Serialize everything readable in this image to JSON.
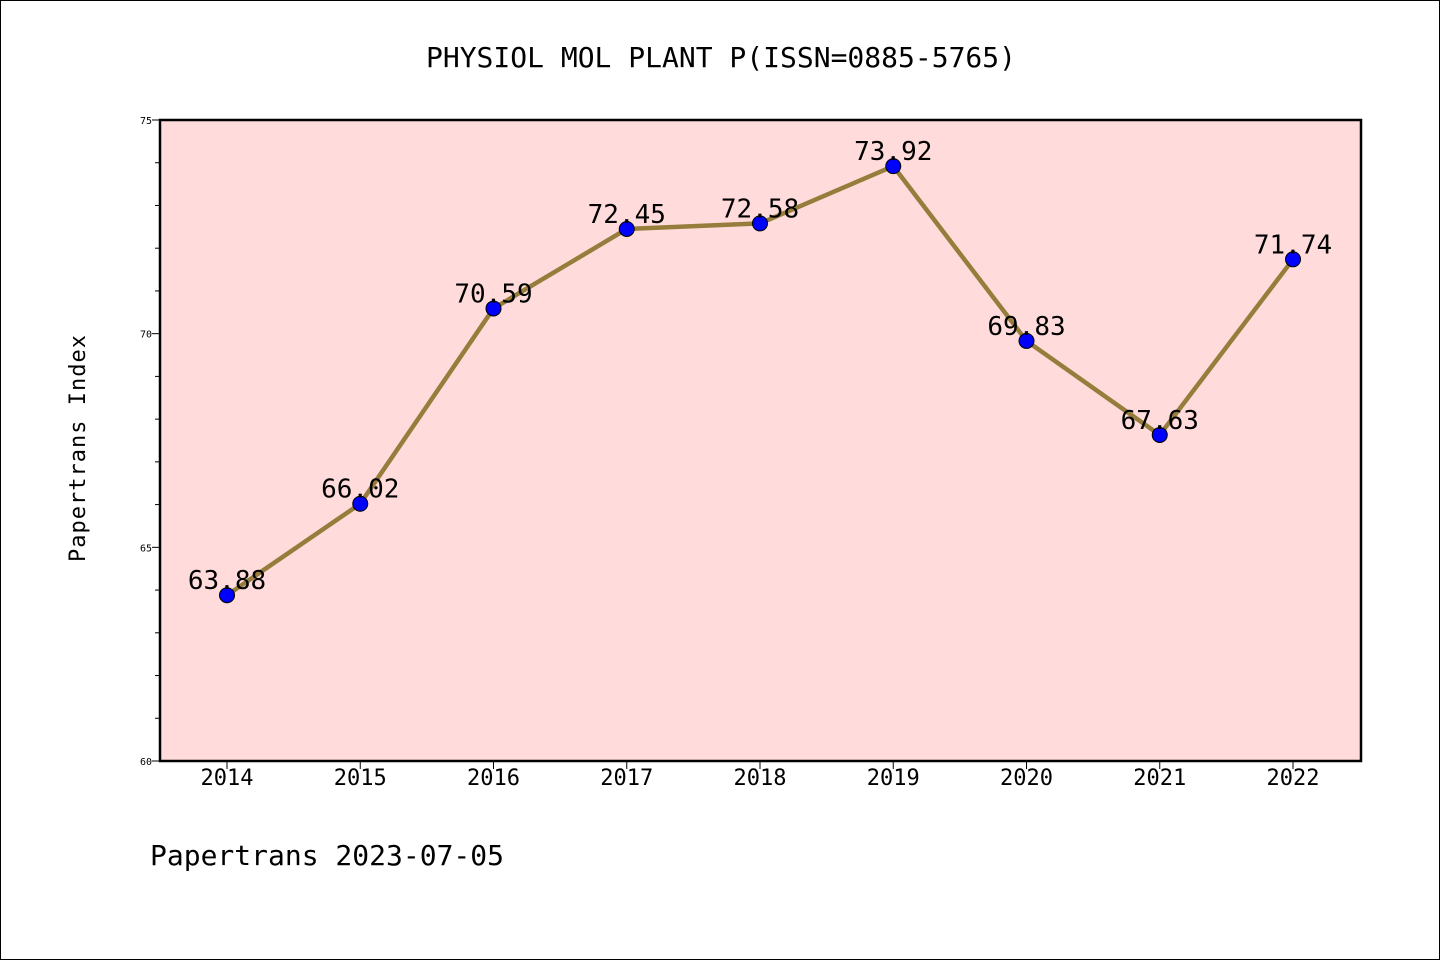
{
  "chart_data": {
    "type": "line",
    "title": "PHYSIOL MOL PLANT P(ISSN=0885-5765)",
    "ylabel": "Papertrans Index",
    "xlabel": "",
    "categories": [
      "2014",
      "2015",
      "2016",
      "2017",
      "2018",
      "2019",
      "2020",
      "2021",
      "2022"
    ],
    "series": [
      {
        "values": [
          63.88,
          66.02,
          70.59,
          72.45,
          72.58,
          73.92,
          69.83,
          67.63,
          71.74
        ],
        "data_labels": [
          "63.88",
          "66.02",
          "70.59",
          "72.45",
          "72.58",
          "73.92",
          "69.83",
          "67.63",
          "71.74"
        ]
      }
    ],
    "ylim": [
      60,
      75
    ],
    "yticks": [
      "60",
      "65",
      "70",
      "75"
    ],
    "y_minor_step": 1,
    "grid": false,
    "legend": "none",
    "colors": {
      "plot_background": "#ffdcdb",
      "line": "#967d3c",
      "marker": "#0000ff",
      "axis": "#000000"
    }
  },
  "footer": "Papertrans 2023-07-05"
}
